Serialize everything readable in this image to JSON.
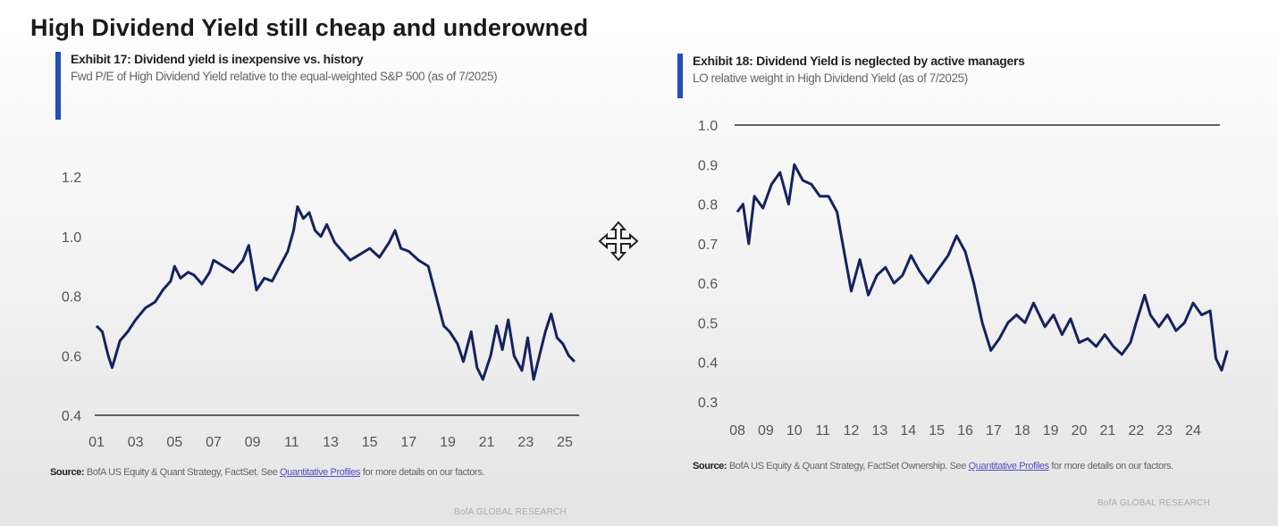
{
  "title": "High Dividend Yield still cheap and underowned",
  "colors": {
    "accent": "#1f4fb8",
    "line": "#14235e",
    "link": "#5550c0"
  },
  "cursor_icon": "move-cursor-icon",
  "exhibits": [
    {
      "title": "Exhibit 17: Dividend yield is inexpensive vs. history",
      "subtitle": "Fwd P/E of High Dividend Yield relative to the equal-weighted S&P 500 (as of 7/2025)",
      "source_label": "Source:",
      "source_text": "BofA US Equity & Quant Strategy, FactSet. See",
      "source_link": "Quantitative Profiles",
      "source_tail": "for more details on our factors.",
      "brand": "BofA GLOBAL RESEARCH"
    },
    {
      "title": "Exhibit 18: Dividend Yield is neglected by active managers",
      "subtitle": "LO relative weight in High Dividend Yield (as of 7/2025)",
      "source_label": "Source:",
      "source_text": "BofA US Equity & Quant Strategy, FactSet Ownership. See",
      "source_link": "Quantitative Profiles",
      "source_tail": "for more details on our factors.",
      "brand": "BofA GLOBAL RESEARCH"
    }
  ],
  "chart_data": [
    {
      "type": "line",
      "title": "Exhibit 17: Dividend yield is inexpensive vs. history",
      "xlabel": "",
      "ylabel": "",
      "ylim": [
        0.4,
        1.2
      ],
      "xlim": [
        2000.7,
        2025.8
      ],
      "yticks": [
        "0.4",
        "0.6",
        "0.8",
        "1.0",
        "1.2"
      ],
      "yticks_values": [
        0.4,
        0.6,
        0.8,
        1.0,
        1.2
      ],
      "xticks": [
        "01",
        "03",
        "05",
        "07",
        "09",
        "11",
        "13",
        "15",
        "17",
        "19",
        "21",
        "23",
        "25"
      ],
      "xticks_values": [
        2001,
        2003,
        2005,
        2007,
        2009,
        2011,
        2013,
        2015,
        2017,
        2019,
        2021,
        2023,
        2025
      ],
      "grid": false,
      "series": [
        {
          "name": "High Dividend Yield relative Fwd P/E",
          "x": [
            2001.0,
            2001.3,
            2001.6,
            2001.8,
            2002.2,
            2002.6,
            2003.0,
            2003.5,
            2004.0,
            2004.4,
            2004.8,
            2005.0,
            2005.3,
            2005.7,
            2006.0,
            2006.4,
            2006.8,
            2007.0,
            2007.5,
            2008.0,
            2008.5,
            2008.8,
            2009.2,
            2009.6,
            2010.0,
            2010.4,
            2010.8,
            2011.1,
            2011.3,
            2011.6,
            2011.9,
            2012.2,
            2012.5,
            2012.8,
            2013.2,
            2013.6,
            2014.0,
            2014.5,
            2015.0,
            2015.5,
            2016.0,
            2016.3,
            2016.6,
            2017.0,
            2017.5,
            2018.0,
            2018.4,
            2018.8,
            2019.1,
            2019.5,
            2019.8,
            2020.2,
            2020.5,
            2020.8,
            2021.2,
            2021.5,
            2021.8,
            2022.1,
            2022.4,
            2022.8,
            2023.1,
            2023.4,
            2023.7,
            2024.0,
            2024.3,
            2024.6,
            2024.9,
            2025.2,
            2025.5
          ],
          "y": [
            0.7,
            0.68,
            0.6,
            0.56,
            0.65,
            0.68,
            0.72,
            0.76,
            0.78,
            0.82,
            0.85,
            0.9,
            0.86,
            0.88,
            0.87,
            0.84,
            0.88,
            0.92,
            0.9,
            0.88,
            0.92,
            0.97,
            0.82,
            0.86,
            0.85,
            0.9,
            0.95,
            1.02,
            1.1,
            1.06,
            1.08,
            1.02,
            1.0,
            1.04,
            0.98,
            0.95,
            0.92,
            0.94,
            0.96,
            0.93,
            0.98,
            1.02,
            0.96,
            0.95,
            0.92,
            0.9,
            0.8,
            0.7,
            0.68,
            0.64,
            0.58,
            0.68,
            0.56,
            0.52,
            0.6,
            0.7,
            0.62,
            0.72,
            0.6,
            0.55,
            0.66,
            0.52,
            0.6,
            0.68,
            0.74,
            0.66,
            0.64,
            0.6,
            0.58
          ]
        }
      ]
    },
    {
      "type": "line",
      "title": "Exhibit 18: Dividend Yield is neglected by active managers",
      "xlabel": "",
      "ylabel": "",
      "ylim": [
        0.3,
        1.0
      ],
      "xlim": [
        2007.7,
        2025.3
      ],
      "yticks": [
        "0.3",
        "0.4",
        "0.5",
        "0.6",
        "0.7",
        "0.8",
        "0.9",
        "1.0"
      ],
      "yticks_values": [
        0.3,
        0.4,
        0.5,
        0.6,
        0.7,
        0.8,
        0.9,
        1.0
      ],
      "xticks": [
        "08",
        "09",
        "10",
        "11",
        "12",
        "13",
        "14",
        "15",
        "16",
        "17",
        "18",
        "19",
        "20",
        "21",
        "22",
        "23",
        "24"
      ],
      "xticks_values": [
        2008,
        2009,
        2010,
        2011,
        2012,
        2013,
        2014,
        2015,
        2016,
        2017,
        2018,
        2019,
        2020,
        2021,
        2022,
        2023,
        2024
      ],
      "grid": false,
      "reference_line": 1.0,
      "series": [
        {
          "name": "LO relative weight in High Dividend Yield",
          "x": [
            2008.0,
            2008.2,
            2008.4,
            2008.6,
            2008.9,
            2009.2,
            2009.5,
            2009.8,
            2010.0,
            2010.3,
            2010.6,
            2010.9,
            2011.2,
            2011.5,
            2011.7,
            2012.0,
            2012.3,
            2012.6,
            2012.9,
            2013.2,
            2013.5,
            2013.8,
            2014.1,
            2014.4,
            2014.7,
            2015.0,
            2015.4,
            2015.7,
            2016.0,
            2016.3,
            2016.6,
            2016.9,
            2017.2,
            2017.5,
            2017.8,
            2018.1,
            2018.4,
            2018.8,
            2019.1,
            2019.4,
            2019.7,
            2020.0,
            2020.3,
            2020.6,
            2020.9,
            2021.2,
            2021.5,
            2021.8,
            2022.0,
            2022.3,
            2022.5,
            2022.8,
            2023.1,
            2023.4,
            2023.7,
            2024.0,
            2024.3,
            2024.6,
            2024.8,
            2025.0,
            2025.2
          ],
          "y": [
            0.78,
            0.8,
            0.7,
            0.82,
            0.79,
            0.85,
            0.88,
            0.8,
            0.9,
            0.86,
            0.85,
            0.82,
            0.82,
            0.78,
            0.7,
            0.58,
            0.66,
            0.57,
            0.62,
            0.64,
            0.6,
            0.62,
            0.67,
            0.63,
            0.6,
            0.63,
            0.67,
            0.72,
            0.68,
            0.6,
            0.5,
            0.43,
            0.46,
            0.5,
            0.52,
            0.5,
            0.55,
            0.49,
            0.52,
            0.47,
            0.51,
            0.45,
            0.46,
            0.44,
            0.47,
            0.44,
            0.42,
            0.45,
            0.5,
            0.57,
            0.52,
            0.49,
            0.52,
            0.48,
            0.5,
            0.55,
            0.52,
            0.53,
            0.41,
            0.38,
            0.43
          ]
        }
      ]
    }
  ]
}
